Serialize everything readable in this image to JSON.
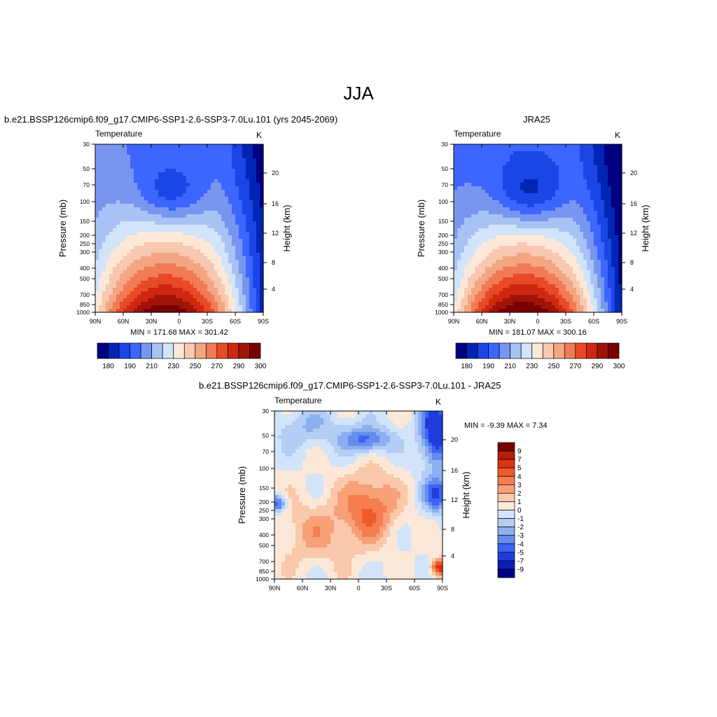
{
  "figure": {
    "season": "JJA"
  },
  "chart_data": [
    {
      "type": "heatmap",
      "id": "model",
      "title": "b.e21.BSSP126cmip6.f09_g17.CMIP6-SSP1-2.6-SSP3-7.0Lu.101 (yrs 2045-2069)",
      "left_title": "Temperature",
      "units": "K",
      "xlabel": "",
      "ylabel": "Pressure (mb)",
      "y2label": "Height (km)",
      "x_ticks": [
        "90N",
        "60N",
        "30N",
        "0",
        "30S",
        "60S",
        "90S"
      ],
      "y_ticks": [
        "30",
        "50",
        "70",
        "100",
        "150",
        "200",
        "250",
        "300",
        "400",
        "500",
        "700",
        "850",
        "1000"
      ],
      "y2_ticks": [
        "20",
        "16",
        "12",
        "8",
        "4"
      ],
      "stats": "MIN = 171.68  MAX = 301.42",
      "min": 171.68,
      "max": 301.42,
      "colorbar_labels": [
        "180",
        "190",
        "210",
        "230",
        "250",
        "270",
        "290",
        "300"
      ],
      "colorbar_colors": [
        "#000080",
        "#0025b4",
        "#1a46e6",
        "#3c66ff",
        "#7896f0",
        "#a8c2f5",
        "#d2e4fa",
        "#fde8d8",
        "#f8c8b0",
        "#f4a582",
        "#f07b55",
        "#e84a28",
        "#d02810",
        "#a01408",
        "#7a0000"
      ]
    },
    {
      "type": "heatmap",
      "id": "obs",
      "title": "JRA25",
      "left_title": "Temperature",
      "units": "K",
      "xlabel": "",
      "ylabel": "Pressure (mb)",
      "y2label": "Height (km)",
      "x_ticks": [
        "90N",
        "60N",
        "30N",
        "0",
        "30S",
        "60S",
        "90S"
      ],
      "y_ticks": [
        "30",
        "50",
        "70",
        "100",
        "150",
        "200",
        "250",
        "300",
        "400",
        "500",
        "700",
        "850",
        "1000"
      ],
      "y2_ticks": [
        "20",
        "16",
        "12",
        "8",
        "4"
      ],
      "stats": "MIN = 181.07  MAX = 300.16",
      "min": 181.07,
      "max": 300.16,
      "colorbar_labels": [
        "180",
        "190",
        "210",
        "230",
        "250",
        "270",
        "290",
        "300"
      ],
      "colorbar_colors": [
        "#000080",
        "#0025b4",
        "#1a46e6",
        "#3c66ff",
        "#7896f0",
        "#a8c2f5",
        "#d2e4fa",
        "#fde8d8",
        "#f8c8b0",
        "#f4a582",
        "#f07b55",
        "#e84a28",
        "#d02810",
        "#a01408",
        "#7a0000"
      ]
    },
    {
      "type": "heatmap",
      "id": "diff",
      "title": "b.e21.BSSP126cmip6.f09_g17.CMIP6-SSP1-2.6-SSP3-7.0Lu.101 - JRA25",
      "left_title": "Temperature",
      "units": "K",
      "xlabel": "",
      "ylabel": "Pressure (mb)",
      "y2label": "Height (km)",
      "x_ticks": [
        "90N",
        "60N",
        "30N",
        "0",
        "30S",
        "60S",
        "90S"
      ],
      "y_ticks": [
        "30",
        "50",
        "70",
        "100",
        "150",
        "200",
        "250",
        "300",
        "400",
        "500",
        "700",
        "850",
        "1000"
      ],
      "y2_ticks": [
        "20",
        "16",
        "12",
        "8",
        "4"
      ],
      "stats": "MIN =  -9.39  MAX =   7.34",
      "min": -9.39,
      "max": 7.34,
      "colorbar_labels": [
        "9",
        "7",
        "5",
        "4",
        "3",
        "2",
        "1",
        "0",
        "-1",
        "-2",
        "-3",
        "-4",
        "-5",
        "-7",
        "-9"
      ],
      "colorbar_colors": [
        "#7a0000",
        "#b41e0a",
        "#dc320f",
        "#f05a28",
        "#f57d50",
        "#f8a078",
        "#fac8aa",
        "#fde8d8",
        "#d2e4fa",
        "#b4cdf5",
        "#8caff0",
        "#648cf0",
        "#3c64f0",
        "#1e3cdc",
        "#0a1eb4",
        "#000082"
      ]
    }
  ]
}
